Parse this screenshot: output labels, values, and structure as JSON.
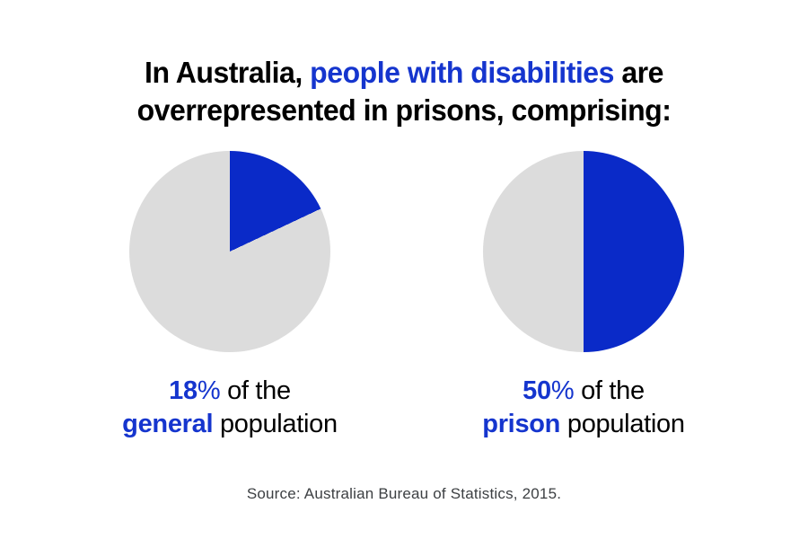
{
  "title": {
    "prefix": "In Australia, ",
    "highlight": "people with disabilities",
    "suffix": " are",
    "line2": "overrepresented in prisons, comprising:"
  },
  "charts": [
    {
      "value": 18,
      "percent_number": "18",
      "percent_sign": "%",
      "after_percent": " of the",
      "highlight_word": "general",
      "after_highlight": " population"
    },
    {
      "value": 50,
      "percent_number": "50",
      "percent_sign": "%",
      "after_percent": " of the",
      "highlight_word": "prison",
      "after_highlight": " population"
    }
  ],
  "source": "Source: Australian Bureau of Statistics, 2015.",
  "colors": {
    "text_blue": "#1535ce",
    "pie_blue": "#0a2ac8",
    "pie_gray": "#dcdcdc",
    "title_black": "#000000",
    "source_gray": "#3d4043"
  },
  "chart_data": [
    {
      "type": "pie",
      "caption": "18% of the general population",
      "categories": [
        "highlighted share",
        "remainder"
      ],
      "values": [
        18,
        82
      ],
      "colors": [
        "#0a2ac8",
        "#dcdcdc"
      ],
      "start_angle": "12 o'clock",
      "direction": "clockwise",
      "legend_position": "none",
      "title": "In Australia, people with disabilities are overrepresented in prisons, comprising:"
    },
    {
      "type": "pie",
      "caption": "50% of the prison population",
      "categories": [
        "highlighted share",
        "remainder"
      ],
      "values": [
        50,
        50
      ],
      "colors": [
        "#0a2ac8",
        "#dcdcdc"
      ],
      "start_angle": "12 o'clock",
      "direction": "clockwise",
      "legend_position": "none",
      "title": "In Australia, people with disabilities are overrepresented in prisons, comprising:"
    }
  ]
}
